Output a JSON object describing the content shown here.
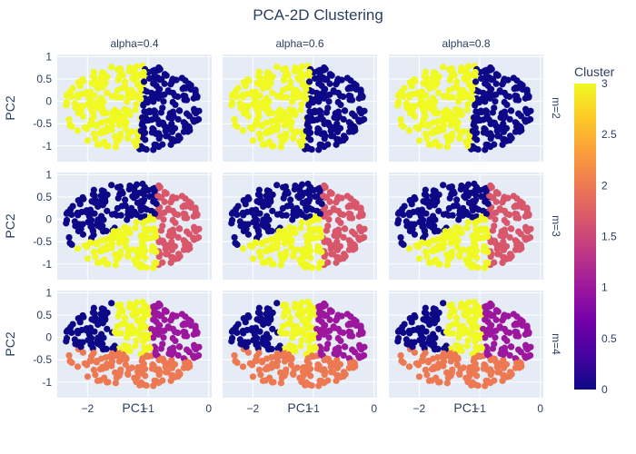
{
  "chart_data": {
    "type": "scatter",
    "title": "PCA-2D Clustering",
    "xlabel": "PC1",
    "ylabel": "PC2",
    "xlim": [
      -2.5,
      0.05
    ],
    "ylim": [
      -1.35,
      1.05
    ],
    "x_ticks": [
      -2,
      -1,
      0
    ],
    "y_ticks": [
      1,
      0.5,
      0,
      -0.5,
      -1
    ],
    "column_facets": [
      "alpha=0.4",
      "alpha=0.6",
      "alpha=0.8"
    ],
    "row_facets": [
      "m=2",
      "m=3",
      "m=4"
    ],
    "grid": true,
    "colorbar": {
      "title": "Cluster",
      "range": [
        0,
        3
      ],
      "ticks": [
        "3",
        "2.5",
        "2",
        "1.5",
        "1",
        "0.5",
        "0"
      ],
      "colorscale": [
        "#0d0887",
        "#46039f",
        "#7201a8",
        "#9c179e",
        "#bd3786",
        "#d8576b",
        "#ed7953",
        "#fb9f3a",
        "#fdca26",
        "#f0f921"
      ]
    },
    "data_cloud": {
      "x_range": [
        -2.4,
        -0.15
      ],
      "y_range": [
        -1.25,
        0.85
      ],
      "description_free": true
    },
    "cluster_colors": {
      "0": "#0d0887",
      "1": "#9c179e",
      "2": "#ed7953",
      "3": "#f0f921",
      "m3_mid": "#d8576b"
    },
    "panels": [
      {
        "row": "m=2",
        "col": "alpha=0.4"
      },
      {
        "row": "m=2",
        "col": "alpha=0.6"
      },
      {
        "row": "m=2",
        "col": "alpha=0.8"
      },
      {
        "row": "m=3",
        "col": "alpha=0.4"
      },
      {
        "row": "m=3",
        "col": "alpha=0.6"
      },
      {
        "row": "m=3",
        "col": "alpha=0.8"
      },
      {
        "row": "m=4",
        "col": "alpha=0.4"
      },
      {
        "row": "m=4",
        "col": "alpha=0.6"
      },
      {
        "row": "m=4",
        "col": "alpha=0.8"
      }
    ]
  }
}
